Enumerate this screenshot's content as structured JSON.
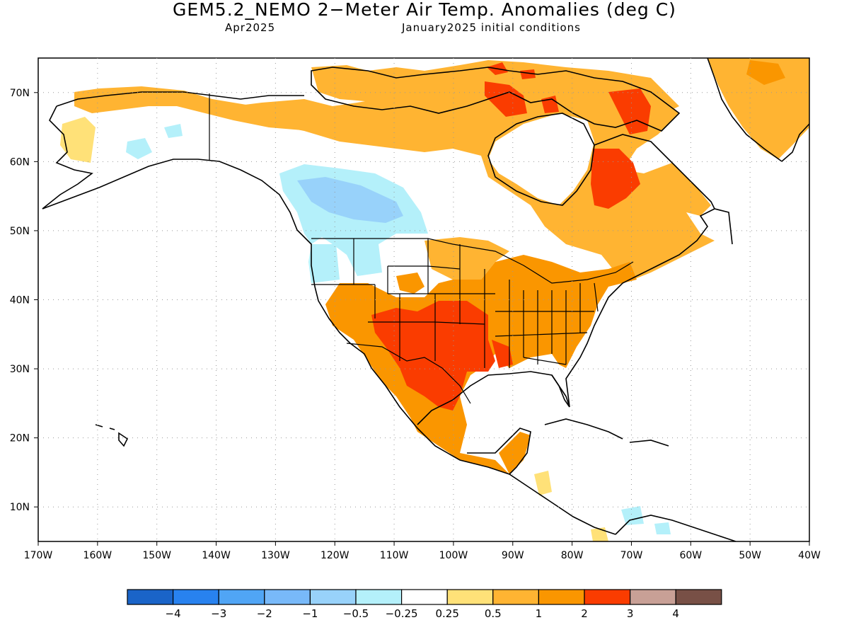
{
  "header": {
    "title": "GEM5.2_NEMO 2−Meter Air Temp. Anomalies (deg C)",
    "month": "Apr2025",
    "initial_conditions": "January2025 initial conditions"
  },
  "map": {
    "lon_range": [
      -170,
      -40
    ],
    "lat_range": [
      5,
      75
    ],
    "lon_ticks": [
      "170W",
      "160W",
      "150W",
      "140W",
      "130W",
      "120W",
      "110W",
      "100W",
      "90W",
      "80W",
      "70W",
      "60W",
      "50W",
      "40W"
    ],
    "lat_ticks": [
      "10N",
      "20N",
      "30N",
      "40N",
      "50N",
      "60N",
      "70N"
    ],
    "grid": "dotted"
  },
  "colorbar": {
    "labels": [
      "−4",
      "−3",
      "−2",
      "−1",
      "−0.5",
      "−0.25",
      "0.25",
      "0.5",
      "1",
      "2",
      "3",
      "4"
    ],
    "colors": [
      "#1a64c8",
      "#2882ef",
      "#50a5f5",
      "#78b9f9",
      "#98d2fa",
      "#b4f0fa",
      "#ffffff",
      "#ffe178",
      "#ffb432",
      "#fa9600",
      "#fa3c00",
      "#c8a096",
      "#785046"
    ]
  },
  "anomaly_regions": [
    {
      "name": "alaska-north-slope",
      "level": "1"
    },
    {
      "name": "pacific-northwest-canada",
      "level": "-1"
    },
    {
      "name": "canadian-prairies-arctic",
      "level": "1"
    },
    {
      "name": "southern-plains",
      "level": "2"
    },
    {
      "name": "eastern-us",
      "level": "1"
    },
    {
      "name": "quebec-labrador",
      "level": "2"
    },
    {
      "name": "greenland",
      "level": "1"
    },
    {
      "name": "mexico",
      "level": "1"
    }
  ]
}
